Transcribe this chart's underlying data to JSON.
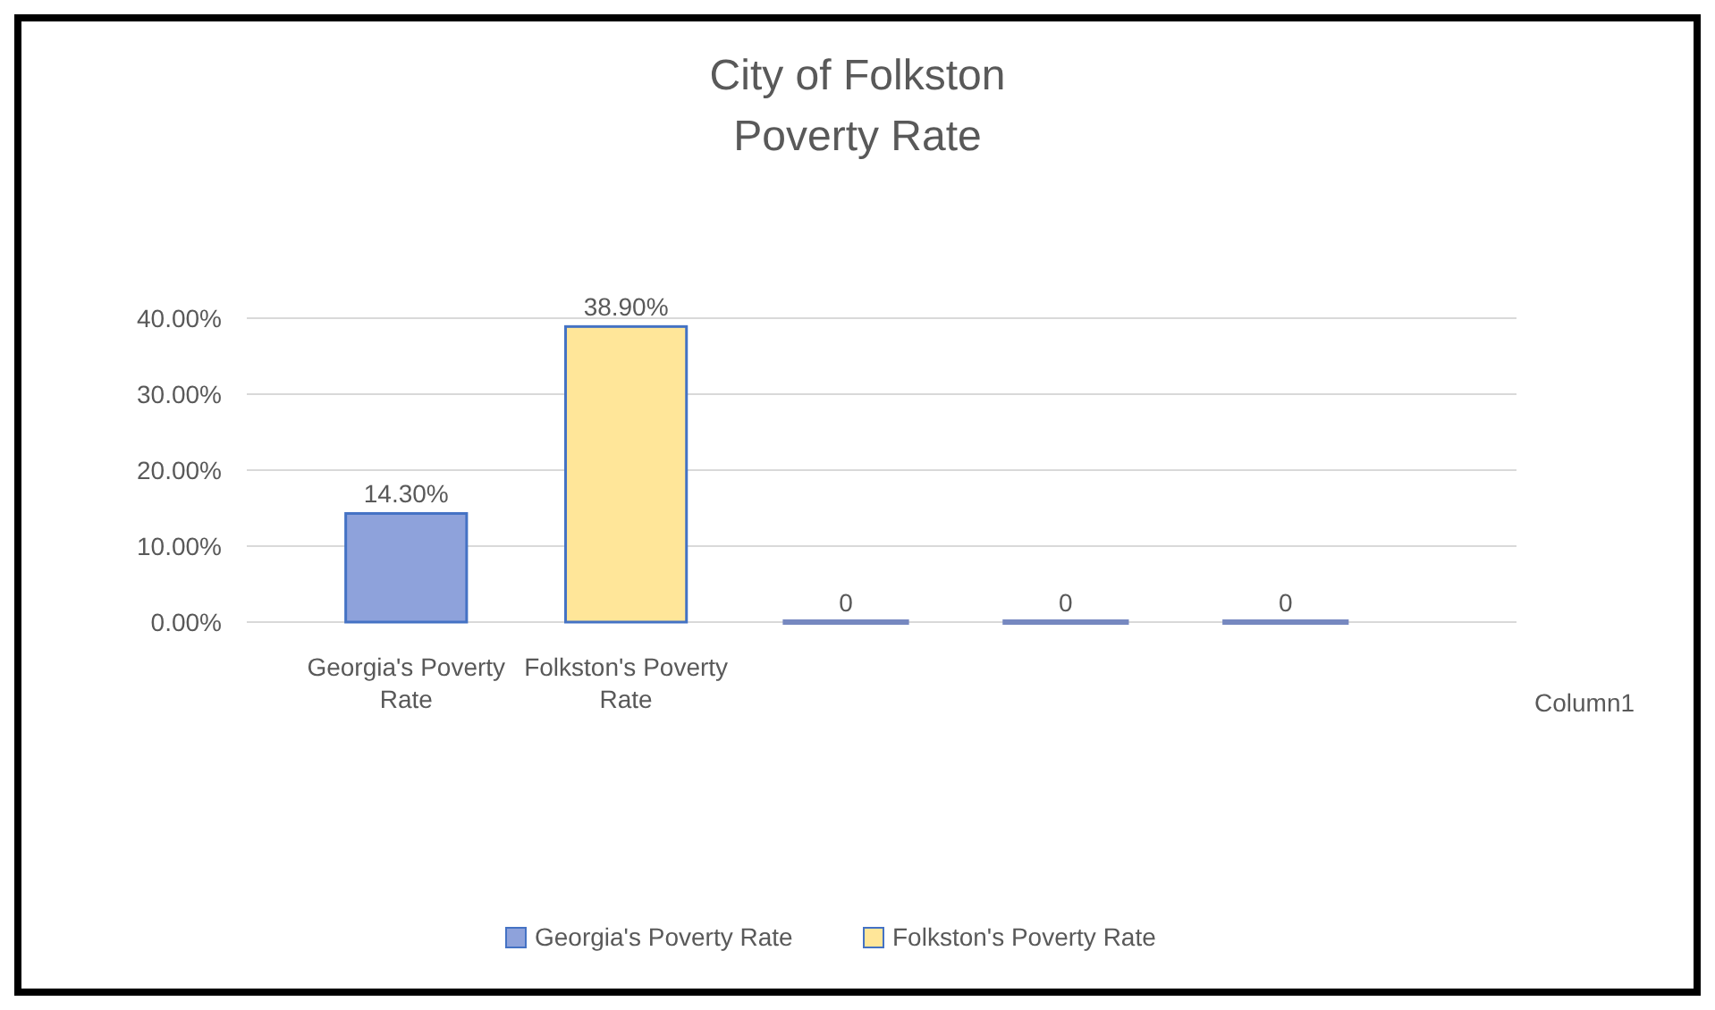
{
  "chart_data": {
    "type": "bar",
    "title": "City of Folkston\nPoverty Rate",
    "categories": [
      "Georgia's Poverty Rate",
      "Folkston's Poverty Rate",
      null,
      null,
      null
    ],
    "series": [
      {
        "name": "Column1",
        "values": [
          14.3,
          38.9,
          0,
          0,
          0
        ],
        "colors": [
          "#8ea2db",
          "#ffe699",
          "#7688c0",
          "#7688c0",
          "#7688c0"
        ],
        "value_labels": [
          "14.30%",
          "38.90%",
          "0",
          "0",
          "0"
        ]
      }
    ],
    "ylim": [
      0,
      40
    ],
    "yticks": [
      {
        "value": 0,
        "label": "0.00%"
      },
      {
        "value": 10,
        "label": "10.00%"
      },
      {
        "value": 20,
        "label": "20.00%"
      },
      {
        "value": 30,
        "label": "30.00%"
      },
      {
        "value": 40,
        "label": "40.00%"
      }
    ],
    "grid": "y",
    "legend": "bottom"
  }
}
